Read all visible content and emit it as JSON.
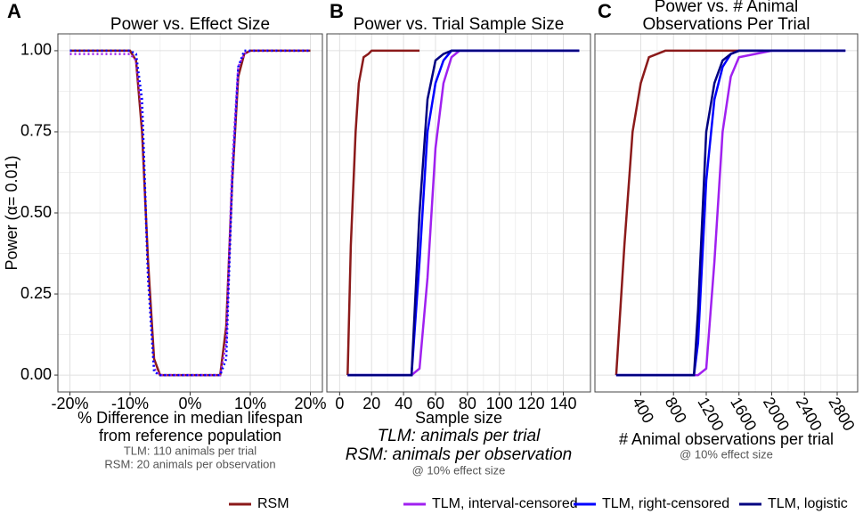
{
  "chart_data": [
    {
      "type": "line",
      "label": "A",
      "title": [
        "Power vs. Effect Size"
      ],
      "ylabel": "Power (α= 0.01)",
      "xlabel": [
        "% Difference in median lifespan",
        "from reference population"
      ],
      "notes": [
        "TLM: 110 animals per trial",
        "RSM: 20 animals per observation"
      ],
      "xlim": [
        -22,
        22
      ],
      "xticks": [
        {
          "value": -20,
          "label": "-20%"
        },
        {
          "value": -10,
          "label": "-10%"
        },
        {
          "value": 0,
          "label": "0%"
        },
        {
          "value": 10,
          "label": "10%"
        },
        {
          "value": 20,
          "label": "20%"
        }
      ],
      "ylim": [
        -0.052,
        1.052
      ],
      "yticks": [
        {
          "value": 0,
          "label": "0.00"
        },
        {
          "value": 0.25,
          "label": "0.25"
        },
        {
          "value": 0.5,
          "label": "0.50"
        },
        {
          "value": 0.75,
          "label": "0.75"
        },
        {
          "value": 1,
          "label": "1.00"
        }
      ],
      "grid": true,
      "series": [
        {
          "color": "#8b1a1a",
          "dash": false,
          "x": [
            -20,
            -15,
            -10,
            -9,
            -8,
            -7,
            -6,
            -5,
            0,
            5,
            6,
            7,
            8,
            9,
            10,
            15,
            20
          ],
          "values": [
            1,
            1,
            1,
            0.97,
            0.75,
            0.35,
            0.05,
            0,
            0,
            0,
            0.15,
            0.6,
            0.92,
            0.99,
            1,
            1,
            1
          ]
        },
        {
          "color": "#a020f0",
          "dash": true,
          "x": [
            -20,
            -15,
            -10,
            -9,
            -8,
            -7,
            -6,
            -5,
            0,
            5,
            6,
            7,
            8,
            9,
            10,
            15,
            20
          ],
          "values": [
            0.99,
            0.99,
            0.99,
            0.97,
            0.8,
            0.3,
            0.02,
            0,
            0,
            0,
            0.1,
            0.65,
            0.95,
            0.99,
            1,
            1,
            1
          ]
        },
        {
          "color": "#0000ff",
          "dash": true,
          "x": [
            -20,
            -15,
            -10,
            -9,
            -8,
            -7,
            -6,
            -5,
            0,
            5,
            6,
            7,
            8,
            9,
            10,
            15,
            20
          ],
          "values": [
            1,
            1,
            1,
            0.99,
            0.85,
            0.3,
            0.01,
            0,
            0,
            0,
            0.05,
            0.6,
            0.95,
            1,
            1,
            1,
            1
          ]
        }
      ]
    },
    {
      "type": "line",
      "label": "B",
      "title": [
        "Power vs. Trial Sample Size"
      ],
      "xlabel": [
        "Sample size"
      ],
      "xlabel_italic": [
        "TLM: animals per trial",
        "RSM: animals per observation"
      ],
      "notes": [
        "@ 10% effect size"
      ],
      "xlim": [
        -8,
        157
      ],
      "xticks": [
        0,
        20,
        40,
        60,
        80,
        100,
        120,
        140
      ],
      "ylim": [
        -0.052,
        1.052
      ],
      "yticks": [
        0,
        0.25,
        0.5,
        0.75,
        1
      ],
      "grid": true,
      "series": [
        {
          "name": "RSM",
          "color": "#8b1a1a",
          "x": [
            5,
            7,
            10,
            12,
            15,
            18,
            20,
            30,
            40,
            50
          ],
          "values": [
            0,
            0.4,
            0.75,
            0.9,
            0.98,
            0.99,
            1,
            1,
            1,
            1
          ]
        },
        {
          "name": "TLM, interval-censored",
          "color": "#a020f0",
          "x": [
            5,
            45,
            50,
            55,
            60,
            65,
            70,
            75,
            100,
            150
          ],
          "values": [
            0,
            0,
            0.02,
            0.3,
            0.7,
            0.9,
            0.98,
            1,
            1,
            1
          ]
        },
        {
          "name": "TLM, right-censored",
          "color": "#0000ff",
          "x": [
            5,
            45,
            50,
            55,
            60,
            65,
            70,
            75,
            100,
            150
          ],
          "values": [
            0,
            0,
            0.35,
            0.75,
            0.9,
            0.97,
            1,
            1,
            1,
            1
          ]
        },
        {
          "name": "TLM, logistic",
          "color": "#000080",
          "x": [
            5,
            45,
            50,
            55,
            60,
            65,
            70,
            75,
            100,
            150
          ],
          "values": [
            0,
            0,
            0.5,
            0.85,
            0.97,
            0.99,
            1,
            1,
            1,
            1
          ]
        }
      ]
    },
    {
      "type": "line",
      "label": "C",
      "title": [
        "Power vs. # Animal",
        "Observations Per Trial"
      ],
      "xlabel": [
        "# Animal observations per trial"
      ],
      "notes": [
        "@ 10% effect size"
      ],
      "xlim": [
        -160,
        3050
      ],
      "xticks": [
        400,
        800,
        1200,
        1600,
        2000,
        2400,
        2800
      ],
      "xtick_rotation": 60,
      "ylim": [
        -0.052,
        1.052
      ],
      "yticks": [
        0,
        0.25,
        0.5,
        0.75,
        1
      ],
      "grid": true,
      "series": [
        {
          "color": "#8b1a1a",
          "x": [
            100,
            200,
            300,
            400,
            500,
            600,
            700,
            1000,
            1500,
            1900
          ],
          "values": [
            0,
            0.4,
            0.75,
            0.9,
            0.98,
            0.99,
            1,
            1,
            1,
            1
          ]
        },
        {
          "color": "#a020f0",
          "x": [
            100,
            1050,
            1100,
            1200,
            1300,
            1400,
            1500,
            1600,
            2000,
            2900
          ],
          "values": [
            0,
            0,
            0,
            0.02,
            0.35,
            0.75,
            0.92,
            0.98,
            1,
            1
          ]
        },
        {
          "color": "#0000ff",
          "x": [
            100,
            1050,
            1100,
            1200,
            1300,
            1400,
            1500,
            1600,
            2000,
            2900
          ],
          "values": [
            0,
            0,
            0.1,
            0.6,
            0.85,
            0.95,
            0.99,
            1,
            1,
            1
          ]
        },
        {
          "color": "#000080",
          "x": [
            100,
            1050,
            1100,
            1200,
            1300,
            1400,
            1500,
            1600,
            2000,
            2900
          ],
          "values": [
            0,
            0,
            0.2,
            0.75,
            0.9,
            0.97,
            0.99,
            1,
            1,
            1
          ]
        }
      ]
    }
  ]
}
